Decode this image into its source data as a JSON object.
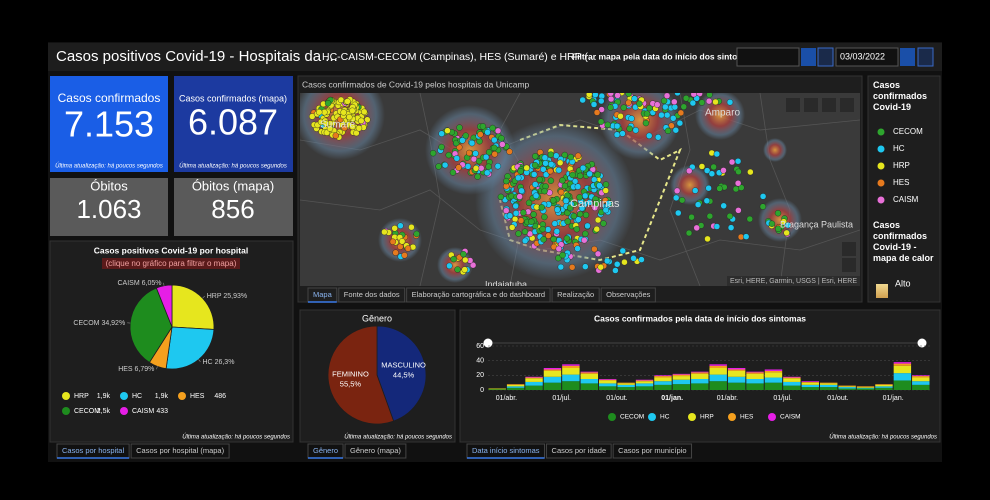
{
  "header": {
    "title": "Casos positivos Covid-19 - Hospitais da ...",
    "subtitle": "HC-CAISM-CECOM (Campinas), HES (Sumaré) e HRP (...",
    "filter_label": "Filtrar mapa pela data do início dos sintomas",
    "date": "03/03/2022"
  },
  "indicators": [
    {
      "label": "Casos confirmados",
      "value": "7.153",
      "note": "Última atualização: há poucos segundos"
    },
    {
      "label": "Casos confirmados (mapa)",
      "value": "6.087",
      "note": "Última atualização: há poucos segundos"
    },
    {
      "label": "Óbitos",
      "value": "1.063"
    },
    {
      "label": "Óbitos (mapa)",
      "value": "856"
    }
  ],
  "hospital_chart": {
    "type": "pie",
    "title": "Casos positivos Covid-19 por hospital",
    "subtitle": "(clique no gráfico para filtrar o mapa)",
    "slices": [
      {
        "name": "HRP",
        "value": 25.93,
        "value_label": "25,93%",
        "color": "#e6e61e"
      },
      {
        "name": "HC",
        "value": 26.3,
        "value_label": "26,3%",
        "color": "#1ec8f0"
      },
      {
        "name": "HES",
        "value": 6.79,
        "value_label": "6,79%",
        "color": "#f5a01e"
      },
      {
        "name": "CECOM",
        "value": 34.92,
        "value_label": "34,92%",
        "color": "#1e8c1e"
      },
      {
        "name": "CAISM",
        "value": 6.05,
        "value_label": "6,05%",
        "color": "#e61ee6"
      }
    ],
    "legend": [
      {
        "name": "HRP",
        "count": "1,9k"
      },
      {
        "name": "HC",
        "count": "1,9k"
      },
      {
        "name": "HES",
        "count": "486"
      },
      {
        "name": "CECOM",
        "count": "2,5k"
      },
      {
        "name": "CAISM",
        "count": "433"
      }
    ],
    "note": "Última atualização: há poucos segundos",
    "tabs": [
      "Casos por hospital",
      "Casos por hospital (mapa)"
    ]
  },
  "map": {
    "title": "Casos confirmados de Covid-19 pelos hospitais da Unicamp",
    "places": [
      "Sumaré",
      "Amparo",
      "Campinas",
      "Bragança Paulista",
      "Indaiatuba"
    ],
    "attribution": "Esri, HERE, Garmin, USGS | Esri, HERE",
    "tabs": [
      "Mapa",
      "Fonte dos dados",
      "Elaboração cartográfica e do dashboard",
      "Realização",
      "Observações"
    ],
    "legend": {
      "title": "Casos confirmados Covid-19",
      "items": [
        {
          "name": "CECOM",
          "color": "#2ea52e"
        },
        {
          "name": "HC",
          "color": "#1ec8f0"
        },
        {
          "name": "HRP",
          "color": "#e6e61e"
        },
        {
          "name": "HES",
          "color": "#e67a1e"
        },
        {
          "name": "CAISM",
          "color": "#e870d8"
        }
      ],
      "heat_title": "Casos confirmados Covid-19 - mapa de calor",
      "heat_high": "Alto"
    }
  },
  "gender_chart": {
    "type": "pie",
    "title": "Gênero",
    "slices": [
      {
        "name": "MASCULINO",
        "value": 44.5,
        "value_label": "44,5%",
        "color": "#14287a"
      },
      {
        "name": "FEMININO",
        "value": 55.5,
        "value_label": "55,5%",
        "color": "#7a2410"
      }
    ],
    "note": "Última atualização: há poucos segundos",
    "tabs": [
      "Gênero",
      "Gênero (mapa)"
    ]
  },
  "timeline": {
    "type": "bar",
    "title": "Casos confirmados pela data de início dos sintomas",
    "categories": [
      null,
      "01/abr.",
      null,
      null,
      "01/jul.",
      null,
      null,
      "01/out.",
      null,
      null,
      "01/jan.",
      null,
      null,
      "01/abr.",
      null,
      null,
      "01/jul.",
      null,
      null,
      "01/out.",
      null,
      null,
      "01/jan.",
      null
    ],
    "series": [
      {
        "name": "CECOM",
        "color": "#1e8c1e",
        "values": [
          1,
          3,
          6,
          10,
          12,
          9,
          5,
          4,
          5,
          7,
          8,
          9,
          12,
          10,
          9,
          10,
          6,
          4,
          4,
          2,
          2,
          3,
          13,
          7
        ]
      },
      {
        "name": "HC",
        "color": "#1ec8f0",
        "values": [
          0,
          2,
          5,
          8,
          9,
          6,
          4,
          3,
          4,
          5,
          6,
          6,
          9,
          8,
          6,
          7,
          5,
          3,
          3,
          2,
          1,
          2,
          10,
          5
        ]
      },
      {
        "name": "HRP",
        "color": "#e6e61e",
        "values": [
          1,
          2,
          5,
          8,
          9,
          7,
          4,
          2,
          3,
          5,
          5,
          7,
          9,
          8,
          7,
          7,
          5,
          3,
          2,
          1,
          1,
          2,
          10,
          5
        ]
      },
      {
        "name": "HES",
        "color": "#f5a01e",
        "values": [
          0,
          1,
          1,
          2,
          3,
          2,
          1,
          1,
          1,
          2,
          2,
          2,
          3,
          2,
          2,
          2,
          1,
          1,
          1,
          1,
          1,
          1,
          3,
          2
        ]
      },
      {
        "name": "CAISM",
        "color": "#e61ee6",
        "values": [
          0,
          0,
          1,
          2,
          2,
          1,
          1,
          0,
          1,
          1,
          1,
          1,
          2,
          2,
          1,
          2,
          1,
          1,
          0,
          0,
          0,
          0,
          2,
          1
        ]
      }
    ],
    "ylim": [
      0,
      60
    ],
    "yticks": [
      0,
      20,
      40,
      60
    ],
    "grid": true,
    "note": "Última atualização: há poucos segundos",
    "tabs": [
      "Data início sintomas",
      "Casos por idade",
      "Casos por município"
    ]
  }
}
